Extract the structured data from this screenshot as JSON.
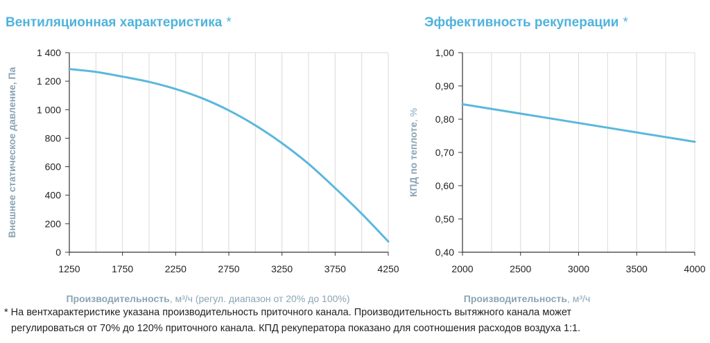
{
  "left_title": "Вентиляционная характеристика",
  "right_title": "Эффективность рекуперации",
  "title_marker": "*",
  "footnote_line1": "* На вентхарактеристике указана производительность приточного канала. Производительность вытяжного канала может",
  "footnote_line2": "регулироваться от 70% до 120% приточного канала. КПД рекуператора показано для соотношения расходов воздуха 1:1.",
  "colors": {
    "title": "#4fb3dc",
    "line": "#5bb7dd",
    "grid": "#d9d9d9",
    "axis_label": "#8aa4b5"
  },
  "chart_data": [
    {
      "type": "line",
      "title": "Вентиляционная характеристика",
      "xlabel_bold": "Производительность",
      "xlabel_unit": ", м³/ч",
      "xlabel_note": " (регул. диапазон от 20% до 100%)",
      "ylabel": "Внешнее статическое давление, Па",
      "xlim": [
        1250,
        4250
      ],
      "ylim": [
        0,
        1400
      ],
      "x_ticks": [
        1250,
        1750,
        2250,
        2750,
        3250,
        3750,
        4250
      ],
      "x_tick_labels": [
        "1250",
        "1750",
        "2250",
        "2750",
        "3250",
        "3750",
        "4250"
      ],
      "y_ticks": [
        0,
        200,
        400,
        600,
        800,
        1000,
        1200,
        1400
      ],
      "y_tick_labels": [
        "0",
        "200",
        "400",
        "600",
        "800",
        "1 000",
        "1 200",
        "1 400"
      ],
      "grid": "vertical",
      "x_minor_step": 250,
      "series": [
        {
          "x": [
            1250,
            1500,
            1750,
            2000,
            2250,
            2500,
            2750,
            3000,
            3250,
            3500,
            3750,
            4000,
            4250
          ],
          "y": [
            1285,
            1265,
            1232,
            1195,
            1145,
            1080,
            995,
            890,
            765,
            620,
            450,
            270,
            75
          ]
        }
      ]
    },
    {
      "type": "line",
      "title": "Эффективность рекуперации",
      "xlabel_bold": "Производительность",
      "xlabel_unit": ", м³/ч",
      "xlabel_note": "",
      "ylabel_bold": "КПД по теплоте",
      "ylabel_unit": ", %",
      "xlim": [
        2000,
        4000
      ],
      "ylim": [
        0.4,
        1.0
      ],
      "x_ticks": [
        2000,
        2500,
        3000,
        3500,
        4000
      ],
      "x_tick_labels": [
        "2000",
        "2500",
        "3000",
        "3500",
        "4000"
      ],
      "y_ticks": [
        0.4,
        0.5,
        0.6,
        0.7,
        0.8,
        0.9,
        1.0
      ],
      "y_tick_labels": [
        "0,40",
        "0,50",
        "0,60",
        "0,70",
        "0,80",
        "0,90",
        "1,00"
      ],
      "grid": "vertical",
      "x_minor_step": 250,
      "series": [
        {
          "x": [
            2000,
            4000
          ],
          "y": [
            0.845,
            0.732
          ]
        }
      ]
    }
  ]
}
